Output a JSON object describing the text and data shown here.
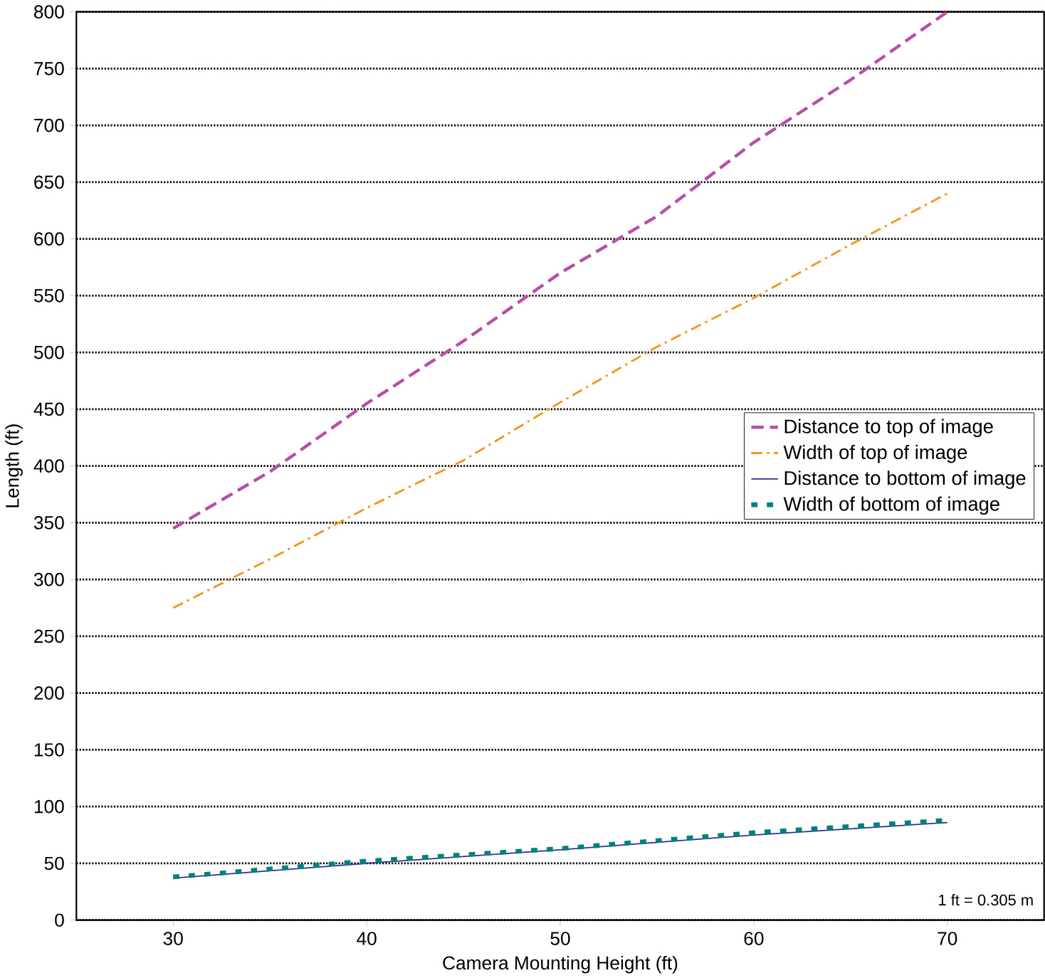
{
  "chart_data": {
    "type": "line",
    "xlabel": "Camera Mounting Height (ft)",
    "ylabel": "Length (ft)",
    "xlim": [
      25,
      75
    ],
    "xticks": [
      30,
      40,
      50,
      60,
      70
    ],
    "ylim": [
      0,
      800
    ],
    "yticks": [
      0,
      50,
      100,
      150,
      200,
      250,
      300,
      350,
      400,
      450,
      500,
      550,
      600,
      650,
      700,
      750,
      800
    ],
    "grid": "y",
    "legend": "right",
    "marker": "none",
    "annotations": [
      "1 ft = 0.305 m"
    ],
    "series": [
      {
        "name": "Distance to top of image",
        "color": "#b84fa6",
        "line_style": "dashed",
        "x": [
          30,
          35,
          40,
          45,
          50,
          55,
          60,
          65,
          70
        ],
        "values": [
          345,
          395,
          455,
          510,
          570,
          620,
          685,
          740,
          800
        ]
      },
      {
        "name": "Width of top of image",
        "color": "#f7941d",
        "line_style": "dashdot",
        "x": [
          30,
          35,
          40,
          45,
          50,
          55,
          60,
          65,
          70
        ],
        "values": [
          275,
          318,
          363,
          405,
          456,
          505,
          548,
          595,
          640
        ]
      },
      {
        "name": "Distance to bottom of image",
        "color": "#2e3192",
        "line_style": "solid",
        "x": [
          30,
          40,
          50,
          60,
          70
        ],
        "values": [
          37,
          50,
          62,
          75,
          86
        ]
      },
      {
        "name": "Width of bottom of image",
        "color": "#00807f",
        "line_style": "dotted",
        "x": [
          30,
          40,
          50,
          60,
          70
        ],
        "values": [
          38,
          52,
          63,
          77,
          88
        ]
      }
    ]
  }
}
